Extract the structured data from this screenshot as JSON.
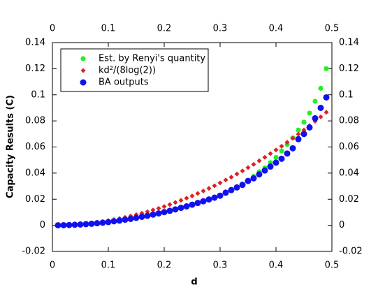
{
  "chart_data": {
    "type": "scatter",
    "x_label": "d",
    "y_label": "Capacity Results (C)",
    "x": [
      0.01,
      0.02,
      0.03,
      0.04,
      0.05,
      0.06,
      0.07,
      0.08,
      0.09,
      0.1,
      0.11,
      0.12,
      0.13,
      0.14,
      0.15,
      0.16,
      0.17,
      0.18,
      0.19,
      0.2,
      0.21,
      0.22,
      0.23,
      0.24,
      0.25,
      0.26,
      0.27,
      0.28,
      0.29,
      0.3,
      0.31,
      0.32,
      0.33,
      0.34,
      0.35,
      0.36,
      0.37,
      0.38,
      0.39,
      0.4,
      0.41,
      0.42,
      0.43,
      0.44,
      0.45,
      0.46,
      0.47,
      0.48,
      0.49
    ],
    "series": [
      {
        "name": "Est. by Renyi's quantity",
        "color": "#22ee22",
        "marker": "asterisk",
        "values": [
          0.0,
          0.0001,
          0.0002,
          0.0004,
          0.0006,
          0.0009,
          0.0012,
          0.0016,
          0.002,
          0.0025,
          0.0031,
          0.0036,
          0.0043,
          0.0049,
          0.0057,
          0.0065,
          0.0073,
          0.0082,
          0.0091,
          0.0101,
          0.0111,
          0.0122,
          0.0134,
          0.0145,
          0.0158,
          0.0171,
          0.0184,
          0.0198,
          0.0212,
          0.0227,
          0.0245,
          0.0265,
          0.029,
          0.0315,
          0.0345,
          0.0375,
          0.041,
          0.044,
          0.048,
          0.052,
          0.057,
          0.062,
          0.067,
          0.073,
          0.079,
          0.086,
          0.095,
          0.105,
          0.12
        ]
      },
      {
        "name": "kd²/(8log(2))",
        "color": "#dd2222",
        "marker": "diamond",
        "values": [
          0.0,
          0.0001,
          0.0003,
          0.0006,
          0.0009,
          0.0013,
          0.0018,
          0.0023,
          0.0029,
          0.0036,
          0.0044,
          0.0052,
          0.0061,
          0.0071,
          0.0081,
          0.0092,
          0.0104,
          0.0117,
          0.013,
          0.0144,
          0.0159,
          0.0175,
          0.0191,
          0.0208,
          0.0225,
          0.0244,
          0.0263,
          0.0283,
          0.0303,
          0.0325,
          0.0347,
          0.0369,
          0.0393,
          0.0417,
          0.0442,
          0.0467,
          0.0494,
          0.0521,
          0.0549,
          0.0577,
          0.0606,
          0.0636,
          0.0667,
          0.0698,
          0.073,
          0.0763,
          0.0797,
          0.0831,
          0.0866
        ]
      },
      {
        "name": "BA outputs",
        "color": "#1111ee",
        "marker": "circle",
        "values": [
          0.0,
          0.0001,
          0.0002,
          0.0004,
          0.0006,
          0.0009,
          0.0012,
          0.0016,
          0.002,
          0.0025,
          0.0031,
          0.0036,
          0.0043,
          0.0049,
          0.0057,
          0.0065,
          0.0073,
          0.0082,
          0.0091,
          0.0101,
          0.0111,
          0.0122,
          0.0134,
          0.0145,
          0.0158,
          0.0171,
          0.0184,
          0.0198,
          0.0212,
          0.0227,
          0.025,
          0.027,
          0.029,
          0.031,
          0.034,
          0.036,
          0.039,
          0.042,
          0.045,
          0.048,
          0.051,
          0.055,
          0.059,
          0.066,
          0.07,
          0.075,
          0.082,
          0.09,
          0.098
        ]
      }
    ],
    "xlim": [
      0,
      0.5
    ],
    "xticks": [
      0,
      0.1,
      0.2,
      0.3,
      0.4,
      0.5
    ],
    "ylim": [
      -0.02,
      0.14
    ],
    "yticks": [
      -0.02,
      0,
      0.02,
      0.04,
      0.06,
      0.08,
      0.1,
      0.12,
      0.14
    ],
    "legend": "upper left"
  }
}
